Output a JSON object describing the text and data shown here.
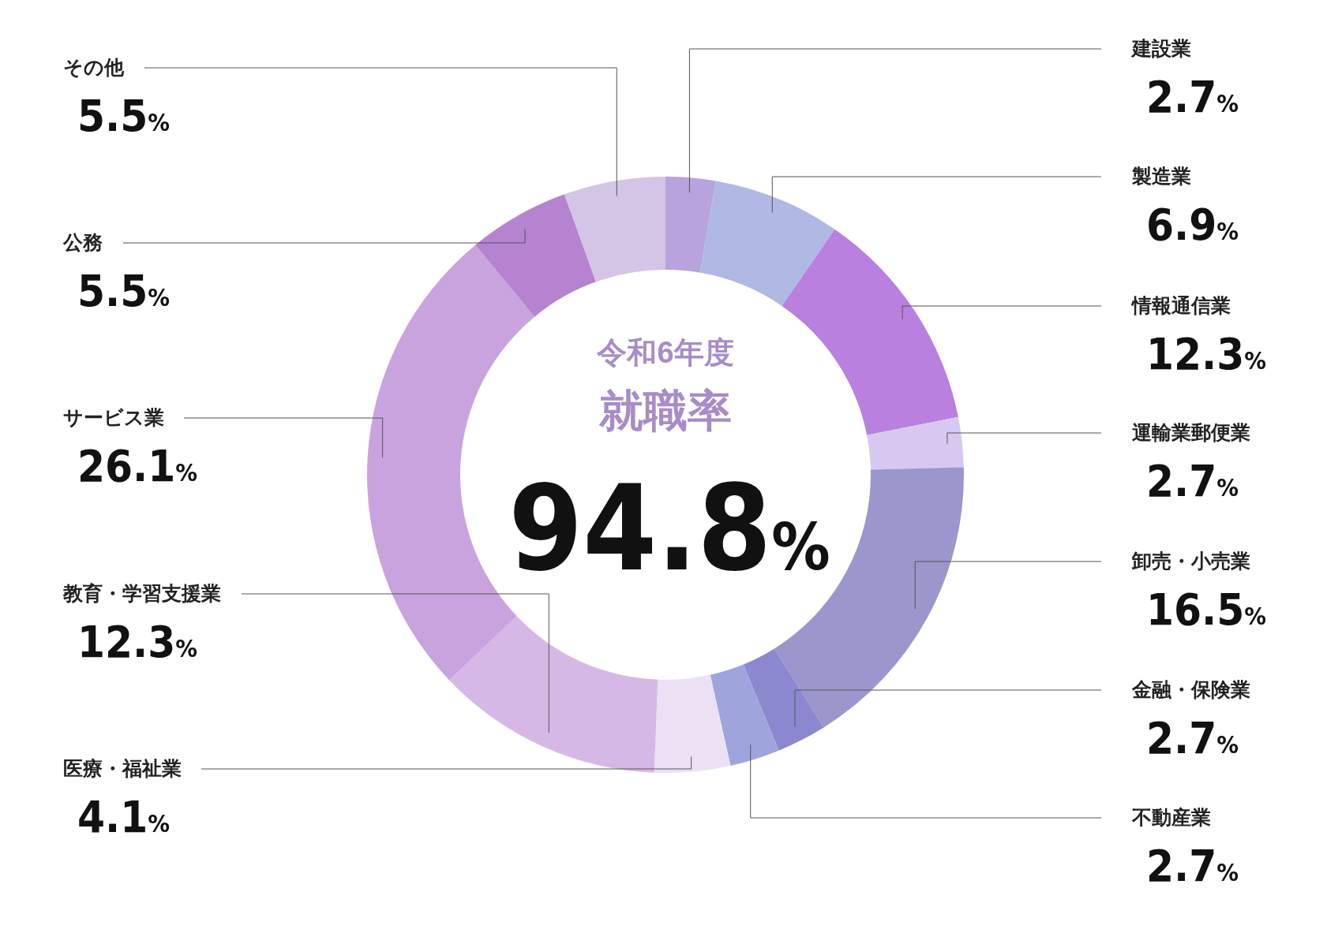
{
  "chart_data": {
    "type": "donut",
    "title": "就職率",
    "subtitle": "令和6年度",
    "annotations": [
      "94.8%"
    ],
    "categories": [
      "建設業",
      "製造業",
      "情報通信業",
      "運輸業郵便業",
      "卸売・小売業",
      "金融・保険業",
      "不動産業",
      "医療・福祉業",
      "教育・学習支援業",
      "サービス業",
      "公務",
      "その他"
    ],
    "values": [
      2.7,
      6.9,
      12.3,
      2.7,
      16.5,
      2.7,
      2.7,
      4.1,
      12.3,
      26.1,
      5.5,
      5.5
    ],
    "value_labels": [
      "2.7%",
      "6.9%",
      "12.3%",
      "2.7%",
      "16.5%",
      "2.7%",
      "2.7%",
      "4.1%",
      "12.3%",
      "26.1%",
      "5.5%",
      "5.5%"
    ],
    "colors": [
      "#b8a3dc",
      "#b0b8e4",
      "#b980e0",
      "#d8c8f0",
      "#9b96cc",
      "#8b88d0",
      "#a0a4dc",
      "#ece0f4",
      "#d6b8e6",
      "#c9a3de",
      "#b583d0",
      "#d4c4e6"
    ]
  }
}
